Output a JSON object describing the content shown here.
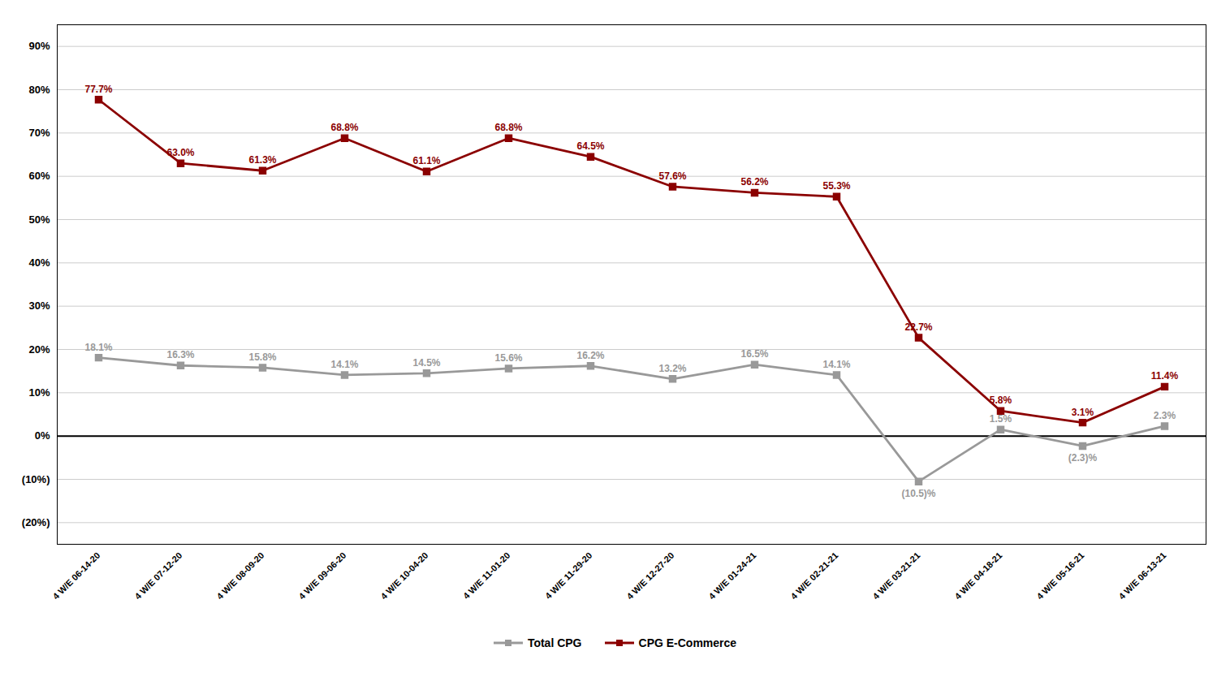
{
  "chart_data": {
    "type": "line",
    "categories": [
      "4 W/E 06-14-20",
      "4 W/E 07-12-20",
      "4 W/E 08-09-20",
      "4 W/E 09-06-20",
      "4 W/E 10-04-20",
      "4 W/E 11-01-20",
      "4 W/E 11-29-20",
      "4 W/E 12-27-20",
      "4 W/E 01-24-21",
      "4 W/E 02-21-21",
      "4 W/E 03-21-21",
      "4 W/E 04-18-21",
      "4 W/E 05-16-21",
      "4 W/E 06-13-21"
    ],
    "series": [
      {
        "name": "Total CPG",
        "color": "#999999",
        "marker": "square",
        "values": [
          18.1,
          16.3,
          15.8,
          14.1,
          14.5,
          15.6,
          16.2,
          13.2,
          16.5,
          14.1,
          -10.5,
          1.5,
          -2.3,
          2.3
        ],
        "value_labels": [
          "18.1%",
          "16.3%",
          "15.8%",
          "14.1%",
          "14.5%",
          "15.6%",
          "16.2%",
          "13.2%",
          "16.5%",
          "14.1%",
          "(10.5)%",
          "1.5%",
          "(2.3)%",
          "2.3%"
        ]
      },
      {
        "name": "CPG E-Commerce",
        "color": "#8B0000",
        "marker": "square",
        "values": [
          77.7,
          63.0,
          61.3,
          68.8,
          61.1,
          68.8,
          64.5,
          57.6,
          56.2,
          55.3,
          22.7,
          5.8,
          3.1,
          11.4
        ],
        "value_labels": [
          "77.7%",
          "63.0%",
          "61.3%",
          "68.8%",
          "61.1%",
          "68.8%",
          "64.5%",
          "57.6%",
          "56.2%",
          "55.3%",
          "22.7%",
          "5.8%",
          "3.1%",
          "11.4%"
        ]
      }
    ],
    "ylim": [
      -25,
      95
    ],
    "yticks": [
      {
        "value": -20,
        "label": "(20%)"
      },
      {
        "value": -10,
        "label": "(10%)"
      },
      {
        "value": 0,
        "label": "0%"
      },
      {
        "value": 10,
        "label": "10%"
      },
      {
        "value": 20,
        "label": "20%"
      },
      {
        "value": 30,
        "label": "30%"
      },
      {
        "value": 40,
        "label": "40%"
      },
      {
        "value": 50,
        "label": "50%"
      },
      {
        "value": 60,
        "label": "60%"
      },
      {
        "value": 70,
        "label": "70%"
      },
      {
        "value": 80,
        "label": "80%"
      },
      {
        "value": 90,
        "label": "90%"
      }
    ],
    "grid": true,
    "legend": "bottom",
    "data_labels": true
  }
}
